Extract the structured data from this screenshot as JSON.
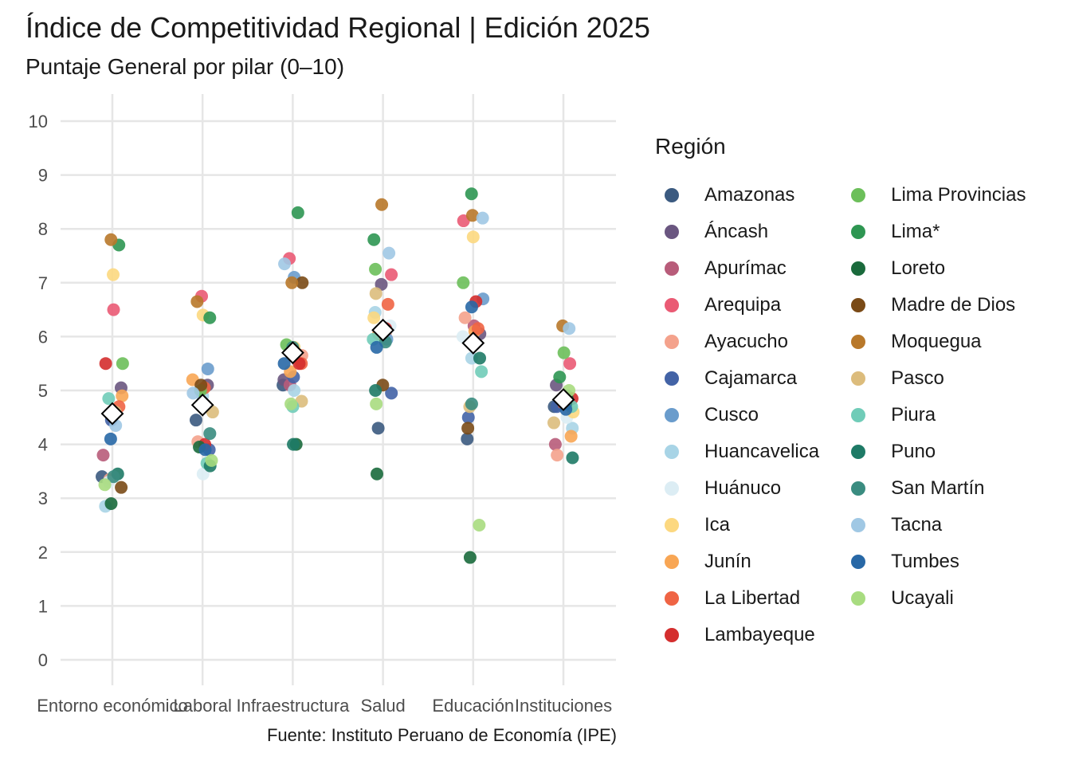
{
  "title": "Índice de Competitividad Regional | Edición 2025",
  "subtitle": "Puntaje General por pilar (0–10)",
  "caption": "Fuente: Instituto Peruano de Economía (IPE)",
  "legend_title": "Región",
  "chart_data": {
    "type": "scatter",
    "title": "Índice de Competitividad Regional | Edición 2025",
    "subtitle": "Puntaje General por pilar (0–10)",
    "xlabel": "",
    "ylabel": "",
    "ylim": [
      0,
      10
    ],
    "y_ticks": [
      "0",
      "1",
      "2",
      "3",
      "4",
      "5",
      "6",
      "7",
      "8",
      "9",
      "10"
    ],
    "grid": true,
    "legend_position": "right",
    "categories": [
      "Entorno económico",
      "Laboral",
      "Infraestructura",
      "Salud",
      "Educación",
      "Instituciones"
    ],
    "series": [
      {
        "name": "Amazonas",
        "color": "#3b5a80",
        "values": [
          3.4,
          4.45,
          5.1,
          4.3,
          4.1,
          4.7
        ]
      },
      {
        "name": "Áncash",
        "color": "#6a5680",
        "values": [
          5.05,
          5.1,
          5.2,
          6.97,
          6.05,
          5.1
        ]
      },
      {
        "name": "Apurímac",
        "color": "#b85c7a",
        "values": [
          3.8,
          4.7,
          5.1,
          6.05,
          6.2,
          4.0
        ]
      },
      {
        "name": "Arequipa",
        "color": "#ea5a74",
        "values": [
          6.5,
          6.75,
          7.45,
          7.15,
          8.15,
          5.5
        ]
      },
      {
        "name": "Ayacucho",
        "color": "#f4a28c",
        "values": [
          3.35,
          4.05,
          5.65,
          6.05,
          6.35,
          3.8
        ]
      },
      {
        "name": "Cajamarca",
        "color": "#4363a6",
        "values": [
          4.45,
          3.9,
          5.25,
          4.95,
          4.5,
          4.7
        ]
      },
      {
        "name": "Cusco",
        "color": "#6a9ccc",
        "values": [
          4.6,
          5.4,
          7.1,
          5.95,
          6.7,
          4.9
        ]
      },
      {
        "name": "Huancavelica",
        "color": "#a8d4e6",
        "values": [
          2.85,
          4.9,
          5.0,
          6.45,
          5.6,
          4.3
        ]
      },
      {
        "name": "Huánuco",
        "color": "#dcedf4",
        "values": [
          3.3,
          3.45,
          5.8,
          6.2,
          6.0,
          4.5
        ]
      },
      {
        "name": "Ica",
        "color": "#fcd880",
        "values": [
          7.15,
          6.4,
          5.8,
          6.35,
          7.85,
          4.6
        ]
      },
      {
        "name": "Junín",
        "color": "#f8a654",
        "values": [
          4.9,
          5.2,
          5.35,
          6.05,
          6.1,
          4.15
        ]
      },
      {
        "name": "La Libertad",
        "color": "#ef6444",
        "values": [
          4.7,
          5.05,
          5.5,
          6.6,
          6.15,
          4.75
        ]
      },
      {
        "name": "Lambayeque",
        "color": "#d42e2e",
        "values": [
          5.5,
          4.0,
          5.5,
          6.15,
          6.65,
          4.85
        ]
      },
      {
        "name": "Lima Provincias",
        "color": "#6cbf5a",
        "values": [
          5.5,
          5.0,
          5.85,
          7.25,
          7.0,
          5.7
        ]
      },
      {
        "name": "Lima*",
        "color": "#2e9652",
        "values": [
          7.7,
          6.35,
          8.3,
          7.8,
          8.65,
          5.25
        ]
      },
      {
        "name": "Loreto",
        "color": "#1a6a3c",
        "values": [
          2.9,
          3.95,
          4.0,
          3.45,
          1.9,
          4.85
        ]
      },
      {
        "name": "Madre de Dios",
        "color": "#7a4a16",
        "values": [
          3.2,
          5.1,
          7.0,
          5.1,
          4.3,
          4.8
        ]
      },
      {
        "name": "Moquegua",
        "color": "#b8782a",
        "values": [
          7.8,
          6.65,
          7.0,
          8.45,
          8.25,
          6.2
        ]
      },
      {
        "name": "Pasco",
        "color": "#dcbc7c",
        "values": [
          4.6,
          4.6,
          4.8,
          6.8,
          4.7,
          4.4
        ]
      },
      {
        "name": "Piura",
        "color": "#70ccb8",
        "values": [
          4.85,
          3.65,
          4.7,
          5.95,
          5.35,
          4.7
        ]
      },
      {
        "name": "Puno",
        "color": "#1e7a66",
        "values": [
          3.45,
          3.6,
          4.0,
          5.0,
          5.6,
          3.75
        ]
      },
      {
        "name": "San Martín",
        "color": "#3a8c80",
        "values": [
          3.4,
          4.2,
          5.8,
          5.9,
          4.75,
          4.75
        ]
      },
      {
        "name": "Tacna",
        "color": "#a0c8e4",
        "values": [
          4.35,
          4.95,
          7.35,
          7.55,
          8.2,
          6.15
        ]
      },
      {
        "name": "Tumbes",
        "color": "#2868a6",
        "values": [
          4.1,
          3.9,
          5.5,
          5.8,
          6.55,
          4.65
        ]
      },
      {
        "name": "Ucayali",
        "color": "#a8dc80",
        "values": [
          3.25,
          3.7,
          4.75,
          4.75,
          2.5,
          5.0
        ]
      }
    ],
    "mean_markers": [
      4.57,
      4.73,
      5.7,
      6.12,
      5.88,
      4.83
    ]
  }
}
